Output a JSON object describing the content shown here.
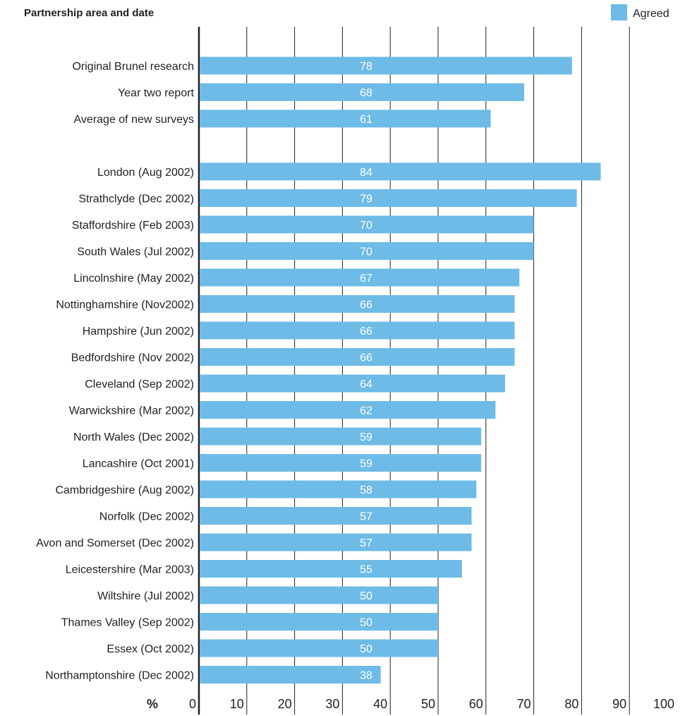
{
  "colors": {
    "bar": "#6dbbe6",
    "grid": "#231f20",
    "text": "#231f20",
    "value_text": "#ffffff"
  },
  "chart_data": {
    "type": "bar",
    "orientation": "horizontal",
    "heading": "Partnership area and date",
    "unit_label": "%",
    "legend": {
      "label": "Agreed",
      "position": "top-right"
    },
    "xlim": [
      0,
      100
    ],
    "ticks": [
      0,
      10,
      20,
      30,
      40,
      50,
      60,
      70,
      80,
      90,
      100
    ],
    "grid": true,
    "groups": [
      {
        "categories": [
          "Original Brunel research",
          "Year two report",
          "Average of new surveys"
        ],
        "values": [
          78,
          68,
          61
        ]
      },
      {
        "categories": [
          "London (Aug 2002)",
          "Strathclyde (Dec 2002)",
          "Staffordshire (Feb 2003)",
          "South Wales (Jul 2002)",
          "Lincolnshire (May 2002)",
          "Nottinghamshire (Nov2002)",
          "Hampshire (Jun 2002)",
          "Bedfordshire (Nov 2002)",
          "Cleveland (Sep 2002)",
          "Warwickshire (Mar 2002)",
          "North Wales (Dec 2002)",
          "Lancashire (Oct 2001)",
          "Cambridgeshire (Aug 2002)",
          "Norfolk (Dec 2002)",
          "Avon and Somerset (Dec 2002)",
          "Leicestershire (Mar 2003)",
          "Wiltshire (Jul 2002)",
          "Thames Valley (Sep 2002)",
          "Essex (Oct 2002)",
          "Northamptonshire (Dec 2002)"
        ],
        "values": [
          84,
          79,
          70,
          70,
          67,
          66,
          66,
          66,
          64,
          62,
          59,
          59,
          58,
          57,
          57,
          55,
          50,
          50,
          50,
          38
        ]
      }
    ]
  }
}
